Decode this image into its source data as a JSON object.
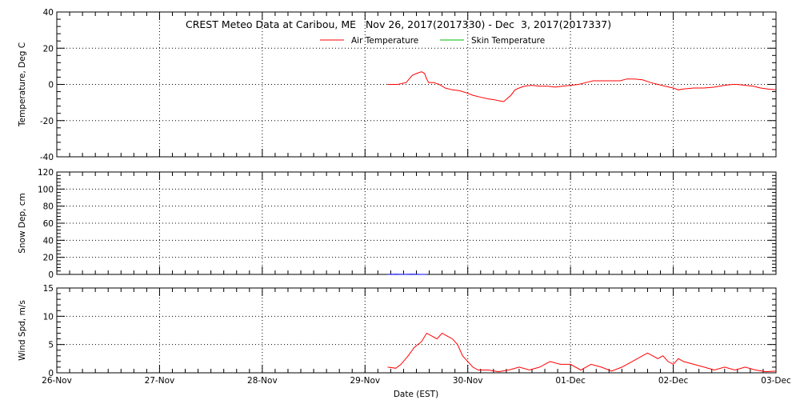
{
  "chart_data": {
    "title": "CREST Meteo Data at Caribou, ME   Nov 26, 2017(2017330) - Dec  3, 2017(2017337)",
    "xlabel": "Date (EST)",
    "x_tick_labels": [
      "26-Nov",
      "27-Nov",
      "28-Nov",
      "29-Nov",
      "30-Nov",
      "01-Dec",
      "02-Dec",
      "03-Dec"
    ],
    "xlim": [
      0,
      7
    ],
    "x_unit": "days since 26-Nov 00:00 EST",
    "panels": [
      {
        "type": "line",
        "ylabel": "Temperature, Deg C",
        "ylim": [
          -40,
          40
        ],
        "yticks": [
          -40,
          -20,
          0,
          20,
          40
        ],
        "legend": [
          {
            "name": "Air Temperature",
            "color": "#ff0000"
          },
          {
            "name": "Skin Temperature",
            "color": "#00bb00"
          }
        ],
        "series": [
          {
            "name": "Air Temperature",
            "color": "#ff0000",
            "points": [
              [
                3.22,
                0
              ],
              [
                3.32,
                0
              ],
              [
                3.4,
                1
              ],
              [
                3.43,
                3
              ],
              [
                3.46,
                5
              ],
              [
                3.5,
                6
              ],
              [
                3.55,
                7
              ],
              [
                3.58,
                6
              ],
              [
                3.6,
                3
              ],
              [
                3.62,
                1
              ],
              [
                3.67,
                1
              ],
              [
                3.72,
                0
              ],
              [
                3.78,
                -2
              ],
              [
                3.85,
                -3
              ],
              [
                3.92,
                -3.5
              ],
              [
                3.98,
                -4.5
              ],
              [
                4.05,
                -6
              ],
              [
                4.12,
                -7
              ],
              [
                4.2,
                -8
              ],
              [
                4.26,
                -8.5
              ],
              [
                4.3,
                -9
              ],
              [
                4.35,
                -9.5
              ],
              [
                4.38,
                -8
              ],
              [
                4.42,
                -6
              ],
              [
                4.46,
                -3
              ],
              [
                4.5,
                -2
              ],
              [
                4.55,
                -1
              ],
              [
                4.62,
                -0.5
              ],
              [
                4.7,
                -1
              ],
              [
                4.78,
                -1
              ],
              [
                4.85,
                -1.5
              ],
              [
                4.92,
                -1
              ],
              [
                5.0,
                -0.5
              ],
              [
                5.08,
                0
              ],
              [
                5.15,
                1
              ],
              [
                5.22,
                2
              ],
              [
                5.3,
                2
              ],
              [
                5.4,
                2
              ],
              [
                5.48,
                2
              ],
              [
                5.55,
                3
              ],
              [
                5.62,
                3
              ],
              [
                5.7,
                2.5
              ],
              [
                5.78,
                1
              ],
              [
                5.85,
                0
              ],
              [
                5.92,
                -1
              ],
              [
                6.0,
                -2
              ],
              [
                6.05,
                -3
              ],
              [
                6.1,
                -2.5
              ],
              [
                6.2,
                -2
              ],
              [
                6.3,
                -2
              ],
              [
                6.4,
                -1.5
              ],
              [
                6.5,
                -0.5
              ],
              [
                6.58,
                0
              ],
              [
                6.62,
                0
              ],
              [
                6.7,
                -0.5
              ],
              [
                6.78,
                -1
              ],
              [
                6.85,
                -2
              ],
              [
                6.92,
                -2.5
              ],
              [
                7.0,
                -3
              ]
            ]
          }
        ]
      },
      {
        "type": "line",
        "ylabel": "Snow Dep, cm",
        "ylim": [
          0,
          120
        ],
        "yticks": [
          0,
          20,
          40,
          60,
          80,
          100,
          120
        ],
        "series": [
          {
            "name": "Snow Depth",
            "color": "#0000ff",
            "points": [
              [
                3.22,
                0
              ],
              [
                3.3,
                0.3
              ],
              [
                3.38,
                0
              ],
              [
                3.46,
                0.3
              ],
              [
                3.54,
                0
              ],
              [
                3.6,
                0
              ]
            ]
          }
        ]
      },
      {
        "type": "line",
        "ylabel": "Wind Spd, m/s",
        "ylim": [
          0,
          15
        ],
        "yticks": [
          0,
          5,
          10,
          15
        ],
        "series": [
          {
            "name": "Wind Speed",
            "color": "#ff0000",
            "points": [
              [
                3.22,
                1
              ],
              [
                3.3,
                0.8
              ],
              [
                3.35,
                1.5
              ],
              [
                3.42,
                3
              ],
              [
                3.48,
                4.5
              ],
              [
                3.55,
                5.5
              ],
              [
                3.6,
                7
              ],
              [
                3.65,
                6.5
              ],
              [
                3.7,
                6
              ],
              [
                3.75,
                7
              ],
              [
                3.8,
                6.5
              ],
              [
                3.85,
                6
              ],
              [
                3.9,
                5
              ],
              [
                3.95,
                3
              ],
              [
                4.0,
                2
              ],
              [
                4.05,
                1
              ],
              [
                4.1,
                0.5
              ],
              [
                4.2,
                0.5
              ],
              [
                4.3,
                0.2
              ],
              [
                4.4,
                0.5
              ],
              [
                4.5,
                1
              ],
              [
                4.6,
                0.5
              ],
              [
                4.7,
                1
              ],
              [
                4.8,
                2
              ],
              [
                4.9,
                1.5
              ],
              [
                5.0,
                1.5
              ],
              [
                5.1,
                0.5
              ],
              [
                5.2,
                1.5
              ],
              [
                5.3,
                1
              ],
              [
                5.4,
                0.3
              ],
              [
                5.5,
                1
              ],
              [
                5.6,
                2
              ],
              [
                5.7,
                3
              ],
              [
                5.75,
                3.5
              ],
              [
                5.8,
                3
              ],
              [
                5.85,
                2.5
              ],
              [
                5.9,
                3
              ],
              [
                5.95,
                2
              ],
              [
                6.0,
                1.5
              ],
              [
                6.05,
                2.5
              ],
              [
                6.1,
                2
              ],
              [
                6.2,
                1.5
              ],
              [
                6.3,
                1
              ],
              [
                6.4,
                0.5
              ],
              [
                6.5,
                1
              ],
              [
                6.6,
                0.5
              ],
              [
                6.7,
                1
              ],
              [
                6.8,
                0.5
              ],
              [
                6.9,
                0.2
              ],
              [
                7.0,
                0.3
              ]
            ]
          }
        ]
      }
    ]
  }
}
